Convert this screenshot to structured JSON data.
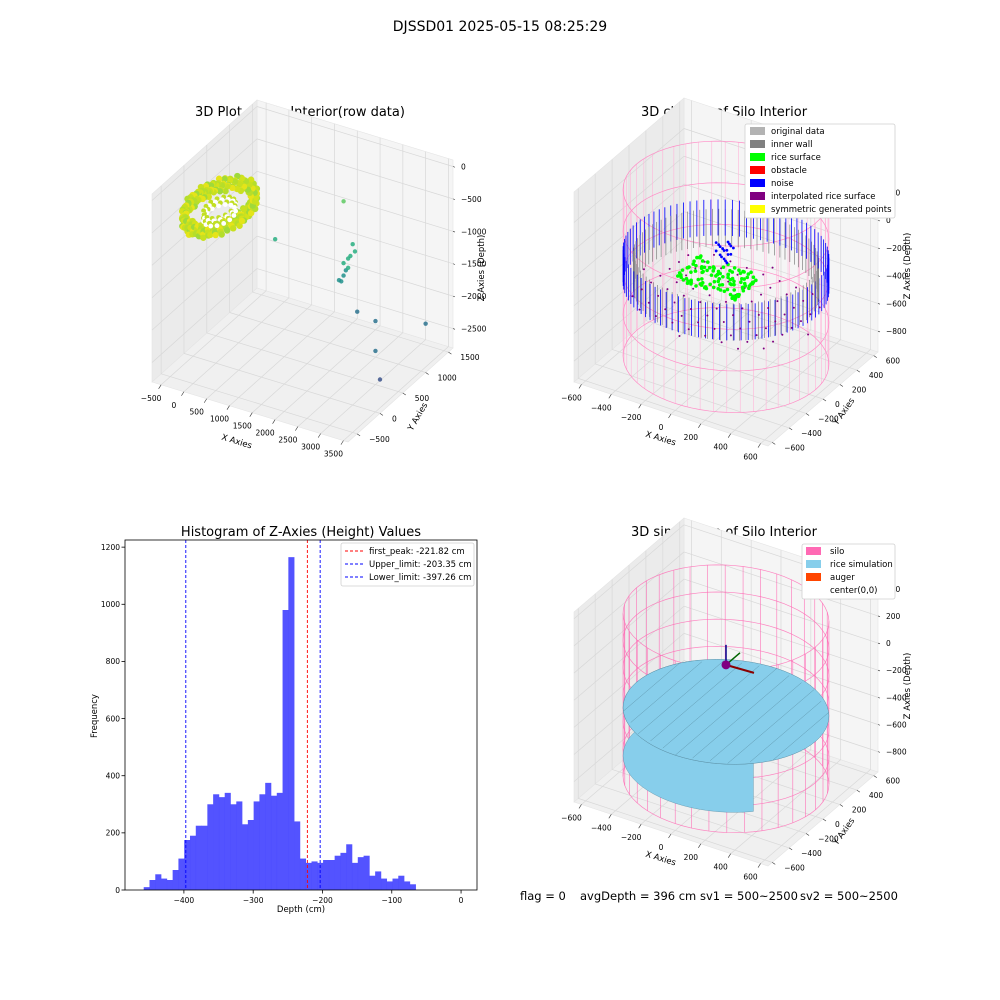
{
  "suptitle": "DJSSD01 2025-05-15 08:25:29",
  "footer": {
    "flag": "flag = 0",
    "avg_depth": "avgDepth = 396 cm",
    "sv1": "sv1 = 500~2500",
    "sv2": "sv2 = 500~2500"
  },
  "colors": {
    "original_data": "#b3b3b3",
    "inner_wall": "#808080",
    "rice_surface": "#00ff00",
    "obstacle": "#ff0000",
    "noise": "#0000ff",
    "interpolated_rice_surface": "#800080",
    "symmetric_generated_points": "#ffff00",
    "silo": "#ff69b4",
    "rice_simulation": "#87ceeb",
    "auger": "#ff4500",
    "histogram_bar": "#4a4aff",
    "first_peak_line": "#ff0000",
    "limit_line": "#0000ff"
  },
  "chart_data": [
    {
      "type": "scatter",
      "title": "3D Plot of Silo Interior(row data)",
      "xlabel": "X Axies",
      "ylabel": "Y Axies",
      "zlabel": "Z Axies (Depth)",
      "x_ticks": [
        "−500",
        "0",
        "500",
        "1000",
        "1500",
        "2000",
        "2500",
        "3000",
        "3500"
      ],
      "y_ticks": [
        "−500",
        "0",
        "500",
        "1000",
        "1500"
      ],
      "z_ticks": [
        "0",
        "−500",
        "−1000",
        "−1500",
        "−2000",
        "−2500"
      ],
      "xlim": [
        -700,
        3600
      ],
      "ylim": [
        -700,
        1600
      ],
      "zlim": [
        -2800,
        100
      ],
      "colormap": "viridis",
      "points": [
        {
          "x": 1800,
          "y": 1000,
          "z": -1500
        },
        {
          "x": 1850,
          "y": 1050,
          "z": -1450
        },
        {
          "x": 1900,
          "y": 1050,
          "z": -1400
        },
        {
          "x": 1950,
          "y": 1100,
          "z": -1350
        },
        {
          "x": 1850,
          "y": 1000,
          "z": -1600
        },
        {
          "x": 1900,
          "y": 1000,
          "z": -1550
        },
        {
          "x": 1800,
          "y": 900,
          "z": -1700
        },
        {
          "x": 1850,
          "y": 950,
          "z": -1650
        },
        {
          "x": 1900,
          "y": 1100,
          "z": -1250
        },
        {
          "x": 1800,
          "y": 950,
          "z": -1750
        },
        {
          "x": 1500,
          "y": 1300,
          "z": -800
        },
        {
          "x": 600,
          "y": 700,
          "z": -1200
        },
        {
          "x": 2200,
          "y": 900,
          "z": -2100
        },
        {
          "x": 2550,
          "y": 950,
          "z": -2200
        },
        {
          "x": 2800,
          "y": 700,
          "z": -2450
        },
        {
          "x": 3100,
          "y": 500,
          "z": -2700
        },
        {
          "x": 3300,
          "y": 1300,
          "z": -2300
        }
      ]
    },
    {
      "type": "scatter",
      "title": "3D classify of Silo Interior",
      "xlabel": "X Axies",
      "ylabel": "Y Axies",
      "zlabel": "Z Axies (Depth)",
      "x_ticks": [
        "−600",
        "−400",
        "−200",
        "0",
        "200",
        "400",
        "600"
      ],
      "y_ticks": [
        "−600",
        "−400",
        "−200",
        "0",
        "200",
        "400",
        "600"
      ],
      "z_ticks": [
        "200",
        "0",
        "−200",
        "−400",
        "−600",
        "−800"
      ],
      "z_top_tick_partial": "00",
      "xlim": [
        -650,
        650
      ],
      "ylim": [
        -650,
        650
      ],
      "zlim": [
        -950,
        420
      ],
      "legend_location": "top-right",
      "legend": [
        "original data",
        "inner wall",
        "rice surface",
        "obstacle",
        "noise",
        "interpolated rice surface",
        "symmetric generated points"
      ]
    },
    {
      "type": "bar",
      "title": "Histogram of Z-Axies (Height) Values",
      "xlabel": "Depth (cm)",
      "ylabel": "Frequency",
      "x_ticks": [
        -400,
        -300,
        -200,
        -100,
        0
      ],
      "x_tick_labels": [
        "−400",
        "−300",
        "−200",
        "−100",
        "0"
      ],
      "y_ticks": [
        0,
        200,
        400,
        600,
        800,
        1000,
        1200
      ],
      "xlim": [
        -485,
        23
      ],
      "ylim": [
        0,
        1225
      ],
      "bin_start": -458,
      "bin_width": 8.35,
      "counts": [
        10,
        35,
        55,
        40,
        35,
        70,
        110,
        175,
        190,
        225,
        225,
        300,
        335,
        325,
        340,
        300,
        310,
        230,
        245,
        310,
        335,
        375,
        330,
        340,
        980,
        1165,
        240,
        110,
        95,
        100,
        95,
        105,
        105,
        120,
        130,
        160,
        95,
        115,
        120,
        50,
        65,
        40,
        30,
        40,
        50,
        30,
        20
      ],
      "vlines": [
        {
          "label": "first_peak: -221.82 cm",
          "x": -221.82,
          "color": "#ff0000"
        },
        {
          "label": "Upper_limit: -203.35 cm",
          "x": -203.35,
          "color": "#0000ff"
        },
        {
          "label": "Lower_limit: -397.26 cm",
          "x": -397.26,
          "color": "#0000ff"
        }
      ],
      "legend_location": "top-right"
    },
    {
      "type": "surface",
      "title": "3D simulation of Silo Interior",
      "xlabel": "X Axies",
      "ylabel": "Y Axies",
      "zlabel": "Z Axies (Depth)",
      "x_ticks": [
        "−600",
        "−400",
        "−200",
        "0",
        "200",
        "400",
        "600"
      ],
      "y_ticks": [
        "−600",
        "−400",
        "−200",
        "0",
        "200",
        "400",
        "600"
      ],
      "z_ticks": [
        "400",
        "200",
        "0",
        "−200",
        "−400",
        "−600",
        "−800"
      ],
      "xlim": [
        -650,
        650
      ],
      "ylim": [
        -650,
        650
      ],
      "zlim": [
        -950,
        450
      ],
      "silo_radius": 600,
      "silo_bottom": -900,
      "silo_top": 300,
      "rice_surface_depth": -396,
      "legend_location": "top-right",
      "legend": [
        "silo",
        "rice simulation",
        "auger",
        "center(0,0)"
      ]
    }
  ]
}
